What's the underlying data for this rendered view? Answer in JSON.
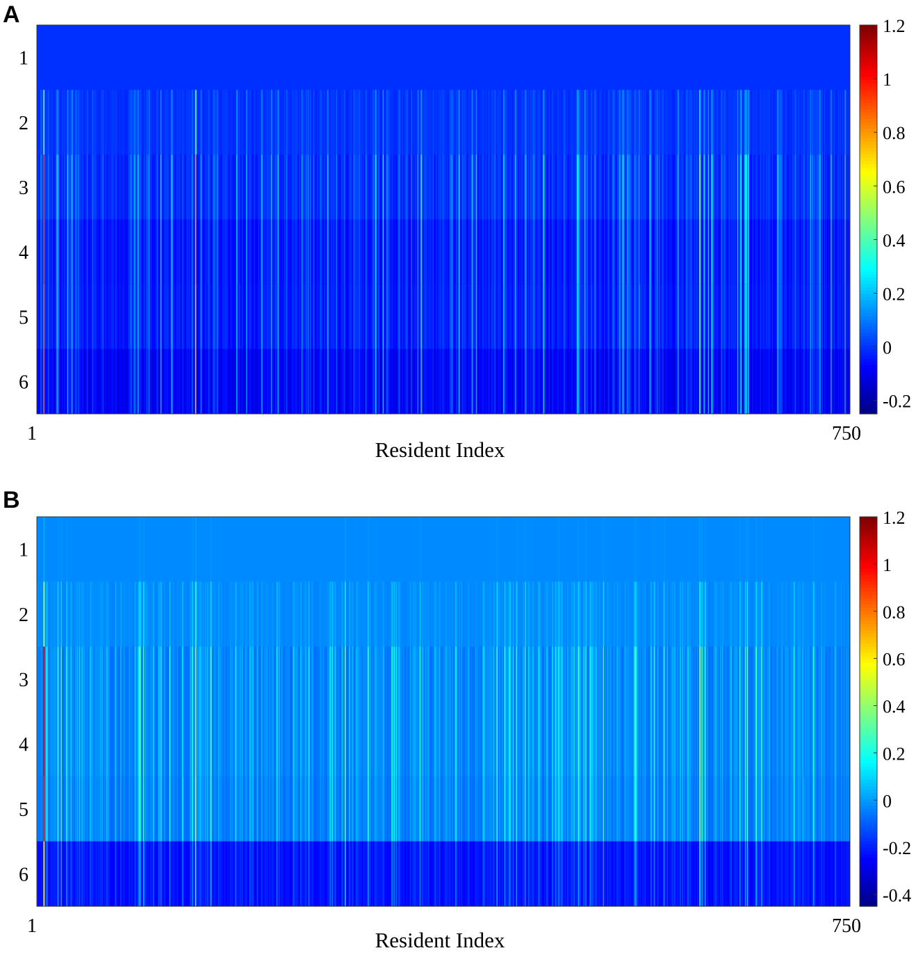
{
  "chart_data": [
    {
      "type": "heatmap",
      "panel_label": "A",
      "xlabel": "Resident Index",
      "x_ticks": [
        "1",
        "750"
      ],
      "xlim": [
        1,
        750
      ],
      "y_ticks": [
        "1",
        "2",
        "3",
        "4",
        "5",
        "6"
      ],
      "colorbar": {
        "colormap": "jet",
        "range": [
          -0.25,
          1.2
        ],
        "ticks": [
          "1.2",
          "1",
          "0.8",
          "0.6",
          "0.4",
          "0.2",
          "0",
          "-0.2"
        ],
        "tick_values": [
          1.2,
          1,
          0.8,
          0.6,
          0.4,
          0.2,
          0,
          -0.2
        ]
      },
      "rows": [
        {
          "row": 1,
          "base": 0.0,
          "spike_scale": 0.0
        },
        {
          "row": 2,
          "base": 0.0,
          "spike_scale": 0.5
        },
        {
          "row": 3,
          "base": -0.01,
          "spike_scale": 1.0
        },
        {
          "row": 4,
          "base": -0.04,
          "spike_scale": 1.0
        },
        {
          "row": 5,
          "base": -0.035,
          "spike_scale": 0.95
        },
        {
          "row": 6,
          "base": -0.08,
          "spike_scale": 1.0
        }
      ],
      "peaks": [
        {
          "x": 7,
          "value": 0.95
        },
        {
          "x": 20,
          "value": 0.22
        },
        {
          "x": 147,
          "value": 0.8
        },
        {
          "x": 320,
          "value": 0.3
        },
        {
          "x": 320,
          "value": 0.3
        },
        {
          "x": 468,
          "value": 0.3
        },
        {
          "x": 500,
          "value": 0.25
        },
        {
          "x": 612,
          "value": 0.55
        },
        {
          "x": 657,
          "value": 0.32
        }
      ]
    },
    {
      "type": "heatmap",
      "panel_label": "B",
      "xlabel": "Resident Index",
      "x_ticks": [
        "1",
        "750"
      ],
      "xlim": [
        1,
        750
      ],
      "y_ticks": [
        "1",
        "2",
        "3",
        "4",
        "5",
        "6"
      ],
      "colorbar": {
        "colormap": "jet",
        "range": [
          -0.45,
          1.2
        ],
        "ticks": [
          "1.2",
          "1",
          "0.8",
          "0.6",
          "0.4",
          "0.2",
          "0",
          "-0.2",
          "-0.4"
        ],
        "tick_values": [
          1.2,
          1,
          0.8,
          0.6,
          0.4,
          0.2,
          0,
          -0.2,
          -0.4
        ]
      },
      "rows": [
        {
          "row": 1,
          "base": -0.02,
          "spike_scale": 0.05
        },
        {
          "row": 2,
          "base": -0.02,
          "spike_scale": 0.4
        },
        {
          "row": 3,
          "base": -0.03,
          "spike_scale": 1.0
        },
        {
          "row": 4,
          "base": -0.03,
          "spike_scale": 1.0
        },
        {
          "row": 5,
          "base": -0.04,
          "spike_scale": 0.95
        },
        {
          "row": 6,
          "base": -0.22,
          "spike_scale": 0.8
        }
      ],
      "peaks": [
        {
          "x": 7,
          "value": 1.05
        },
        {
          "x": 23,
          "value": 0.3
        },
        {
          "x": 147,
          "value": 0.65
        },
        {
          "x": 285,
          "value": 0.4
        },
        {
          "x": 612,
          "value": 0.45
        },
        {
          "x": 656,
          "value": 0.4
        }
      ]
    }
  ]
}
